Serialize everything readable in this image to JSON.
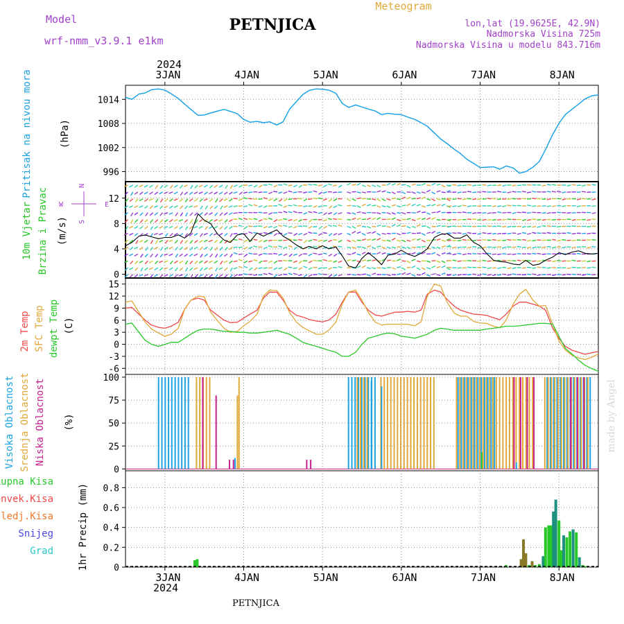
{
  "header": {
    "model_label": "Model",
    "model_name": "wrf-nmm_v3.9.1  e1km",
    "station": "PETNJICA",
    "meteogram": "Meteogram",
    "lonlat": "lon,lat (19.9625E, 42.9N)",
    "altitude": "Nadmorska Visina 725m",
    "model_altitude": "Nadmorska Visina u modelu 843.716m",
    "footer_station": "PETNJICA",
    "watermark": "made by Angel"
  },
  "colors": {
    "pressure": "#1ca3e6",
    "t2m": "#f04848",
    "tsfc": "#e0a838",
    "dewpt": "#28c828",
    "purple": "#a040c8",
    "high_cloud": "#1ca3e6",
    "mid_cloud": "#e0a838",
    "low_cloud": "#c8208c",
    "precip_total": "#28c828",
    "precip_conv": "#f04848",
    "precip_frozen": "#f07828",
    "snow": "#4848e0",
    "hail": "#28c8c8"
  },
  "chart_data": [
    {
      "type": "line",
      "name": "pressure",
      "ylabel_main": "Pritisak na nivou mora",
      "ylabel_unit": "(hPa)",
      "top_year": "2024",
      "top_ticks": [
        "3JAN",
        "4JAN",
        "5JAN",
        "6JAN",
        "7JAN",
        "8JAN"
      ],
      "ylim": [
        993.5,
        1017.5
      ],
      "yticks": [
        996,
        1002,
        1008,
        1014
      ],
      "x": [
        2.5,
        2.58,
        2.67,
        2.75,
        2.83,
        2.92,
        3.0,
        3.08,
        3.17,
        3.25,
        3.33,
        3.42,
        3.5,
        3.58,
        3.67,
        3.75,
        3.83,
        3.92,
        4.0,
        4.08,
        4.17,
        4.25,
        4.33,
        4.42,
        4.5,
        4.58,
        4.67,
        4.75,
        4.83,
        4.92,
        5.0,
        5.08,
        5.17,
        5.25,
        5.33,
        5.42,
        5.5,
        5.58,
        5.67,
        5.75,
        5.83,
        5.92,
        6.0,
        6.08,
        6.17,
        6.25,
        6.33,
        6.42,
        6.5,
        6.58,
        6.67,
        6.75,
        6.83,
        6.92,
        7.0,
        7.08,
        7.17,
        7.25,
        7.33,
        7.42,
        7.5,
        7.58,
        7.67,
        7.75,
        7.83,
        7.92,
        8.0,
        8.08,
        8.17,
        8.25,
        8.33,
        8.42,
        8.5
      ],
      "y": [
        1014.5,
        1014.0,
        1015.3,
        1015.6,
        1016.4,
        1016.6,
        1016.3,
        1015.4,
        1014.2,
        1012.8,
        1011.5,
        1010.0,
        1010.1,
        1010.6,
        1011.1,
        1011.5,
        1011.0,
        1010.4,
        1009.0,
        1008.3,
        1008.5,
        1008.2,
        1008.4,
        1007.6,
        1008.4,
        1011.5,
        1013.5,
        1015.2,
        1016.2,
        1016.6,
        1016.5,
        1016.3,
        1015.5,
        1013.0,
        1012.0,
        1012.6,
        1012.1,
        1011.6,
        1011.1,
        1010.2,
        1010.5,
        1010.3,
        1010.2,
        1009.6,
        1009.0,
        1008.2,
        1007.3,
        1005.6,
        1004.1,
        1003.0,
        1001.6,
        1000.5,
        999.1,
        998.0,
        997.0,
        997.1,
        997.2,
        996.6,
        997.4,
        996.9,
        995.6,
        996.0,
        997.1,
        998.5,
        1001.5,
        1005.2,
        1008.0,
        1010.2,
        1011.6,
        1012.8,
        1014.1,
        1014.9,
        1015.1
      ]
    },
    {
      "type": "line",
      "name": "wind",
      "ylabel_main": "10m Vjetar",
      "ylabel_sub": "Brzina i Pravac",
      "ylabel_unit": "(m/s)",
      "compass": {
        "n": "N",
        "s": "S",
        "e": "E",
        "w": "W",
        "glyph": "|"
      },
      "ylim": [
        -0.6,
        14.6
      ],
      "yticks": [
        0,
        4,
        8,
        12
      ],
      "x": [
        2.5,
        2.58,
        2.67,
        2.75,
        2.83,
        2.92,
        3.0,
        3.08,
        3.17,
        3.25,
        3.33,
        3.42,
        3.5,
        3.58,
        3.67,
        3.75,
        3.83,
        3.92,
        4.0,
        4.08,
        4.17,
        4.25,
        4.33,
        4.42,
        4.5,
        4.58,
        4.67,
        4.75,
        4.83,
        4.92,
        5.0,
        5.08,
        5.17,
        5.25,
        5.33,
        5.42,
        5.5,
        5.58,
        5.67,
        5.75,
        5.83,
        5.92,
        6.0,
        6.08,
        6.17,
        6.25,
        6.33,
        6.42,
        6.5,
        6.58,
        6.67,
        6.75,
        6.83,
        6.92,
        7.0,
        7.08,
        7.17,
        7.25,
        7.33,
        7.42,
        7.5,
        7.58,
        7.67,
        7.75,
        7.83,
        7.92,
        8.0,
        8.08,
        8.17,
        8.25,
        8.33,
        8.42,
        8.5
      ],
      "y": [
        4.5,
        5.0,
        6.0,
        6.2,
        5.9,
        5.6,
        5.8,
        5.8,
        6.2,
        5.7,
        6.5,
        9.5,
        8.5,
        8.0,
        6.3,
        5.4,
        5.0,
        6.2,
        6.4,
        5.2,
        6.5,
        6.0,
        6.5,
        7.0,
        6.0,
        5.4,
        4.6,
        4.0,
        4.4,
        4.0,
        4.5,
        4.0,
        4.3,
        2.9,
        1.3,
        1.0,
        2.5,
        3.4,
        2.5,
        1.5,
        3.0,
        3.2,
        3.8,
        3.2,
        2.8,
        3.3,
        4.0,
        5.8,
        6.3,
        6.4,
        5.7,
        5.7,
        6.2,
        5.0,
        4.5,
        3.3,
        2.2,
        2.0,
        1.9,
        1.6,
        1.5,
        2.2,
        1.4,
        1.6,
        2.2,
        2.7,
        3.4,
        3.1,
        3.5,
        3.7,
        3.3,
        3.2,
        3.3
      ]
    },
    {
      "type": "line",
      "name": "temperature",
      "ylabel_t2m": "2m Temp",
      "ylabel_tsfc": "SFC Temp",
      "ylabel_dew": "dewpt Temp",
      "ylabel_unit": "(C)",
      "ylim": [
        -7.5,
        16.5
      ],
      "yticks": [
        -6,
        -3,
        0,
        3,
        6,
        9,
        12,
        15
      ],
      "x": [
        2.5,
        2.58,
        2.67,
        2.75,
        2.83,
        2.92,
        3.0,
        3.08,
        3.17,
        3.25,
        3.33,
        3.42,
        3.5,
        3.58,
        3.67,
        3.75,
        3.83,
        3.92,
        4.0,
        4.08,
        4.17,
        4.25,
        4.33,
        4.42,
        4.5,
        4.58,
        4.67,
        4.75,
        4.83,
        4.92,
        5.0,
        5.08,
        5.17,
        5.25,
        5.33,
        5.42,
        5.5,
        5.58,
        5.67,
        5.75,
        5.83,
        5.92,
        6.0,
        6.08,
        6.17,
        6.25,
        6.33,
        6.42,
        6.5,
        6.58,
        6.67,
        6.75,
        6.83,
        6.92,
        7.0,
        7.08,
        7.17,
        7.25,
        7.33,
        7.42,
        7.5,
        7.58,
        7.67,
        7.75,
        7.83,
        7.92,
        8.0,
        8.08,
        8.17,
        8.25,
        8.33,
        8.42,
        8.5
      ],
      "series": [
        {
          "name": "2m Temp",
          "y": [
            9,
            9.2,
            7.5,
            6,
            4.8,
            4.2,
            4,
            4.5,
            5.5,
            8.7,
            11,
            11.5,
            11,
            8.5,
            7.2,
            6,
            5.4,
            5.5,
            6.5,
            7.5,
            8.5,
            11.5,
            13,
            13,
            11,
            8.5,
            7.2,
            6.8,
            6.2,
            5.8,
            5.6,
            6,
            7.5,
            10.5,
            13,
            13,
            10.5,
            8.5,
            7.3,
            7,
            7.5,
            8,
            8,
            8.2,
            8,
            8.5,
            12.5,
            13.5,
            13,
            11.2,
            9.5,
            8.5,
            8,
            7.5,
            7.4,
            7.2,
            6.6,
            6.1,
            7.5,
            9.5,
            10.5,
            10.5,
            10,
            9.5,
            8.5,
            4,
            1.5,
            -0.5,
            -1.5,
            -2,
            -2.5,
            -2.1,
            -1.8
          ]
        },
        {
          "name": "SFC Temp",
          "y": [
            10.5,
            10.8,
            8,
            5.5,
            3.8,
            2.8,
            2,
            2.5,
            4,
            8.7,
            11,
            12,
            11.8,
            8,
            5.8,
            4,
            3,
            3.2,
            4.6,
            5.7,
            7.5,
            12,
            13.5,
            13.4,
            11.5,
            8,
            5.5,
            4.2,
            3.4,
            2.5,
            2.5,
            3.5,
            5.5,
            10,
            13,
            13.5,
            11,
            8,
            5.5,
            4.8,
            5,
            5,
            5,
            5,
            4.6,
            5.6,
            12,
            15,
            14.5,
            10.5,
            7.8,
            7,
            7,
            5.7,
            5.3,
            5.2,
            4.5,
            4.1,
            6,
            10,
            12.5,
            13.7,
            11,
            9.5,
            9.7,
            5,
            0.8,
            -1.4,
            -2.8,
            -3.4,
            -3.8,
            -3.2,
            -2.4
          ]
        },
        {
          "name": "dewpt Temp",
          "y": [
            5,
            5.3,
            3,
            1,
            0,
            -0.5,
            0,
            0.5,
            0.5,
            1.5,
            2.5,
            3.5,
            3.8,
            3.8,
            3.5,
            3.2,
            3.2,
            3,
            3,
            2.8,
            2.8,
            3,
            3.2,
            3.5,
            3,
            2.5,
            1.5,
            0.5,
            0,
            -0.5,
            -1,
            -1.5,
            -2,
            -3,
            -3,
            -2,
            0,
            1.5,
            2,
            2.5,
            2.8,
            2.6,
            2,
            1.8,
            1.5,
            2,
            2.5,
            3.5,
            4,
            3.8,
            3.5,
            3.5,
            3.5,
            3.5,
            3.5,
            3.8,
            4,
            4.2,
            4.5,
            4.5,
            4.6,
            4.8,
            5,
            5.2,
            5.2,
            5,
            2,
            -1,
            -2.5,
            -4,
            -5.2,
            -6.1,
            -6.7
          ]
        }
      ]
    },
    {
      "type": "bar",
      "name": "cloud",
      "ylabel_high": "Visoka Oblacnost",
      "ylabel_mid": "Srednja Oblacnost",
      "ylabel_low": "Niska Oblacnost",
      "ylabel_unit": "(%)",
      "ylim": [
        -2,
        103
      ],
      "yticks": [
        0,
        25,
        50,
        75,
        100
      ],
      "high_segments": [
        [
          2.92,
          3.33,
          100
        ],
        [
          5.33,
          5.7,
          100
        ],
        [
          6.72,
          7.2,
          100
        ],
        [
          7.85,
          8.42,
          100
        ]
      ],
      "mid_segments": [
        [
          3.38,
          3.58,
          100
        ],
        [
          3.92,
          3.98,
          100
        ],
        [
          5.42,
          5.6,
          100
        ],
        [
          5.72,
          6.42,
          100
        ],
        [
          6.68,
          7.7,
          100
        ],
        [
          7.8,
          8.4,
          100
        ]
      ],
      "low_segments": [
        [
          3.45,
          3.55,
          100
        ],
        [
          3.62,
          3.65,
          80
        ],
        [
          7.4,
          7.7,
          100
        ],
        [
          8.12,
          8.4,
          100
        ]
      ],
      "single_bars": [
        {
          "x": 3.82,
          "v": 10,
          "c": "low"
        },
        {
          "x": 3.87,
          "v": 10,
          "c": "low"
        },
        {
          "x": 3.89,
          "v": 12,
          "c": "high"
        },
        {
          "x": 3.92,
          "v": 80,
          "c": "mid"
        },
        {
          "x": 4.8,
          "v": 10,
          "c": "low"
        },
        {
          "x": 4.85,
          "v": 10,
          "c": "low"
        },
        {
          "x": 5.75,
          "v": 90,
          "c": "high"
        },
        {
          "x": 5.62,
          "v": 96,
          "c": "high"
        },
        {
          "x": 7.46,
          "v": 7,
          "c": "high"
        },
        {
          "x": 7.02,
          "v": 18,
          "c": "dewpt"
        }
      ]
    },
    {
      "type": "bar",
      "name": "precip",
      "legend": [
        "Ukupna Kisa",
        "Konvek.Kisa",
        "Zaledj.Kisa",
        "Snijeg",
        "Grad"
      ],
      "ylabel_main": "1hr Precip (mm)",
      "ylim": [
        0,
        0.97
      ],
      "yticks": [
        0,
        0.2,
        0.4,
        0.6,
        0.8
      ],
      "bottom_ticks": [
        "3JAN",
        "4JAN",
        "5JAN",
        "6JAN",
        "7JAN",
        "8JAN"
      ],
      "bottom_year": "2024",
      "x": [
        3.38,
        3.41,
        7.33,
        7.52,
        7.55,
        7.58,
        7.62,
        7.66,
        7.7,
        7.75,
        7.8,
        7.83,
        7.87,
        7.9,
        7.93,
        7.96,
        8.0,
        8.03,
        8.06,
        8.1,
        8.14,
        8.18,
        8.22,
        8.26,
        8.3,
        8.34
      ],
      "values": [
        0.07,
        0.08,
        0.02,
        0.08,
        0.28,
        0.14,
        0.02,
        0.06,
        0.02,
        0.03,
        0.11,
        0.4,
        0.42,
        0.42,
        0.56,
        0.68,
        0.47,
        0.17,
        0.32,
        0.3,
        0.36,
        0.38,
        0.35,
        0.1,
        0.02,
        0.01
      ],
      "types": [
        "total",
        "total",
        "total",
        "frozen",
        "frozen",
        "frozen",
        "total",
        "frozen",
        "total",
        "total",
        "hail",
        "total",
        "total",
        "total",
        "hail",
        "hail",
        "total",
        "total",
        "hail",
        "total",
        "total",
        "hail",
        "total",
        "hail",
        "total",
        "total"
      ]
    }
  ]
}
